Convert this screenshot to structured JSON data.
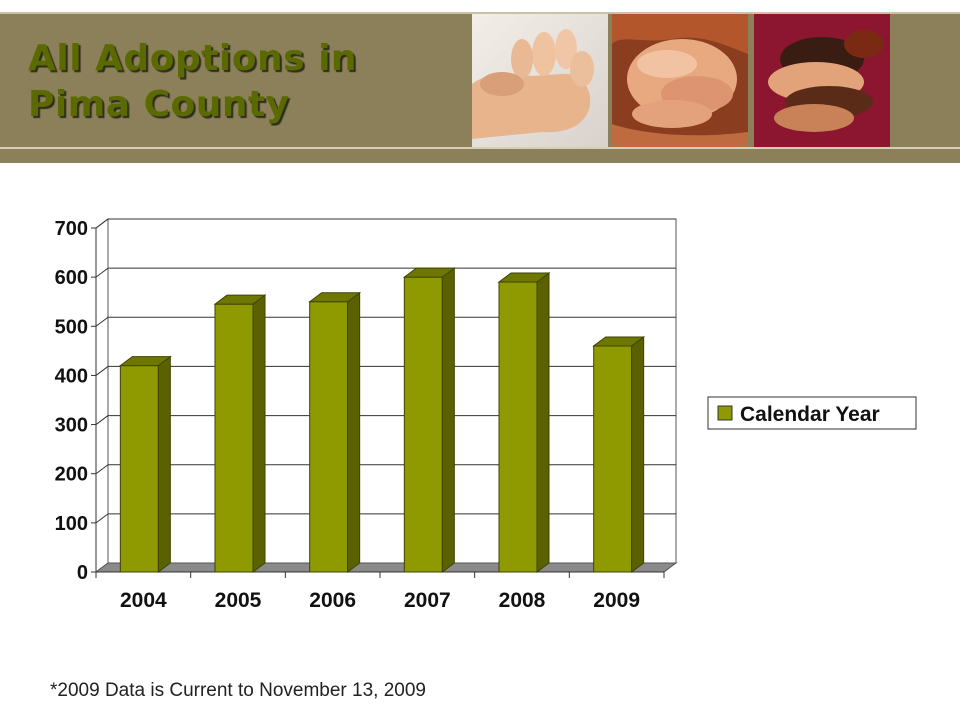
{
  "slide": {
    "title_line1": "All Adoptions in",
    "title_line2": "Pima County",
    "footnote": "*2009 Data is Current to November 13, 2009"
  },
  "colors": {
    "header_band": "#8b8059",
    "title_text": "#5b6a00",
    "bar_front": "#8e9a00",
    "bar_side": "#5a6100",
    "bar_top": "#6e7700"
  },
  "header_images": [
    {
      "name": "baby-hand-photo"
    },
    {
      "name": "holding-hands-photo"
    },
    {
      "name": "stacked-hands-photo"
    }
  ],
  "chart_data": {
    "type": "bar",
    "categories": [
      "2004",
      "2005",
      "2006",
      "2007",
      "2008",
      "2009"
    ],
    "series": [
      {
        "name": "Calendar Year",
        "values": [
          420,
          545,
          550,
          600,
          590,
          460
        ]
      }
    ],
    "ylim": [
      0,
      700
    ],
    "yticks": [
      "0",
      "100",
      "200",
      "300",
      "400",
      "500",
      "600",
      "700"
    ],
    "grid": true,
    "legend": "right",
    "3d": true
  }
}
